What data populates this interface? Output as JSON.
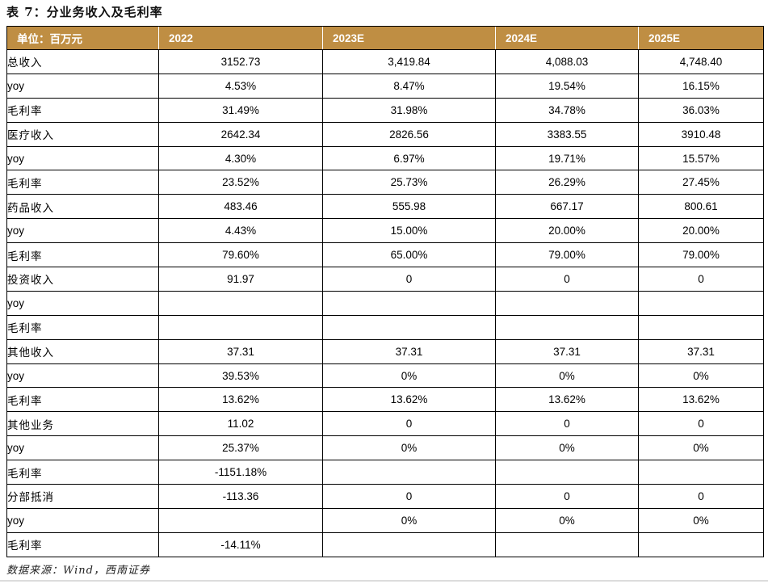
{
  "title": "表 7：分业务收入及毛利率",
  "table": {
    "unit_label": "单位：百万元",
    "columns": [
      "2022",
      "2023E",
      "2024E",
      "2025E"
    ],
    "rows": [
      {
        "label": "总收入",
        "label_lang": "cn",
        "values": [
          "3152.73",
          "3,419.84",
          "4,088.03",
          "4,748.40"
        ]
      },
      {
        "label": "yoy",
        "label_lang": "en",
        "values": [
          "4.53%",
          "8.47%",
          "19.54%",
          "16.15%"
        ]
      },
      {
        "label": "毛利率",
        "label_lang": "cn",
        "values": [
          "31.49%",
          "31.98%",
          "34.78%",
          "36.03%"
        ]
      },
      {
        "label": "医疗收入",
        "label_lang": "cn",
        "values": [
          "2642.34",
          "2826.56",
          "3383.55",
          "3910.48"
        ]
      },
      {
        "label": "yoy",
        "label_lang": "en",
        "values": [
          "4.30%",
          "6.97%",
          "19.71%",
          "15.57%"
        ]
      },
      {
        "label": "毛利率",
        "label_lang": "cn",
        "values": [
          "23.52%",
          "25.73%",
          "26.29%",
          "27.45%"
        ]
      },
      {
        "label": "药品收入",
        "label_lang": "cn",
        "values": [
          "483.46",
          "555.98",
          "667.17",
          "800.61"
        ]
      },
      {
        "label": "yoy",
        "label_lang": "en",
        "values": [
          "4.43%",
          "15.00%",
          "20.00%",
          "20.00%"
        ]
      },
      {
        "label": "毛利率",
        "label_lang": "cn",
        "values": [
          "79.60%",
          "65.00%",
          "79.00%",
          "79.00%"
        ]
      },
      {
        "label": "投资收入",
        "label_lang": "cn",
        "values": [
          "91.97",
          "0",
          "0",
          "0"
        ]
      },
      {
        "label": "yoy",
        "label_lang": "en",
        "values": [
          "",
          "",
          "",
          ""
        ]
      },
      {
        "label": "毛利率",
        "label_lang": "cn",
        "values": [
          "",
          "",
          "",
          ""
        ]
      },
      {
        "label": "其他收入",
        "label_lang": "cn",
        "values": [
          "37.31",
          "37.31",
          "37.31",
          "37.31"
        ]
      },
      {
        "label": "yoy",
        "label_lang": "en",
        "values": [
          "39.53%",
          "0%",
          "0%",
          "0%"
        ]
      },
      {
        "label": "毛利率",
        "label_lang": "cn",
        "values": [
          "13.62%",
          "13.62%",
          "13.62%",
          "13.62%"
        ]
      },
      {
        "label": "其他业务",
        "label_lang": "cn",
        "values": [
          "11.02",
          "0",
          "0",
          "0"
        ]
      },
      {
        "label": "yoy",
        "label_lang": "en",
        "values": [
          "25.37%",
          "0%",
          "0%",
          "0%"
        ]
      },
      {
        "label": "毛利率",
        "label_lang": "cn",
        "values": [
          "-1151.18%",
          "",
          "",
          ""
        ]
      },
      {
        "label": "分部抵消",
        "label_lang": "cn",
        "values": [
          "-113.36",
          "0",
          "0",
          "0"
        ]
      },
      {
        "label": "yoy",
        "label_lang": "en",
        "values": [
          "",
          "0%",
          "0%",
          "0%"
        ]
      },
      {
        "label": "毛利率",
        "label_lang": "cn",
        "values": [
          "-14.11%",
          "",
          "",
          ""
        ]
      }
    ]
  },
  "footer": {
    "source": "数据来源：Wind，西南证券"
  },
  "colors": {
    "header_bg": "#BF8E43",
    "header_text": "#FFFFFF",
    "table_border": "#000000",
    "bottom_divider": "#DCDCDC"
  }
}
